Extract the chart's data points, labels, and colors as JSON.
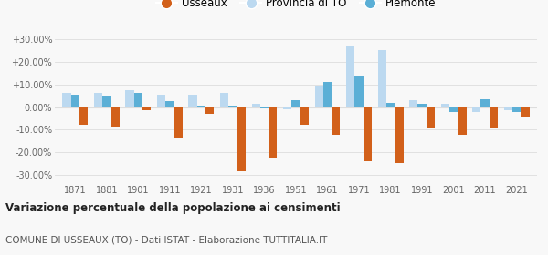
{
  "years": [
    1871,
    1881,
    1901,
    1911,
    1921,
    1931,
    1936,
    1951,
    1961,
    1971,
    1981,
    1991,
    2001,
    2011,
    2021
  ],
  "usseaux": [
    -8.0,
    -8.5,
    -1.5,
    -14.0,
    -3.0,
    -28.5,
    -22.5,
    -8.0,
    -12.5,
    -24.0,
    -25.0,
    -9.5,
    -12.5,
    -9.5,
    -4.5
  ],
  "provincia": [
    6.5,
    6.5,
    7.5,
    5.5,
    5.5,
    6.5,
    1.5,
    -1.0,
    9.5,
    27.0,
    25.5,
    3.0,
    1.5,
    -2.0,
    -1.5
  ],
  "piemonte": [
    5.5,
    5.0,
    6.5,
    2.5,
    0.5,
    0.5,
    -0.5,
    3.0,
    11.0,
    13.5,
    2.0,
    1.5,
    -2.0,
    3.5,
    -2.0
  ],
  "usseaux_color": "#d2601a",
  "provincia_color": "#bcd9f0",
  "piemonte_color": "#5bafd6",
  "title": "Variazione percentuale della popolazione ai censimenti",
  "subtitle": "COMUNE DI USSEAUX (TO) - Dati ISTAT - Elaborazione TUTTITALIA.IT",
  "ytick_vals": [
    -30,
    -20,
    -10,
    0,
    10,
    20,
    30
  ],
  "ytick_labels": [
    "-30.00%",
    "-20.00%",
    "-10.00%",
    "0.00%",
    "+10.00%",
    "+20.00%",
    "+30.00%"
  ],
  "ylim": [
    -34,
    34
  ],
  "legend_labels": [
    "Usseaux",
    "Provincia di TO",
    "Piemonte"
  ],
  "background_color": "#f8f8f8",
  "grid_color": "#dddddd"
}
